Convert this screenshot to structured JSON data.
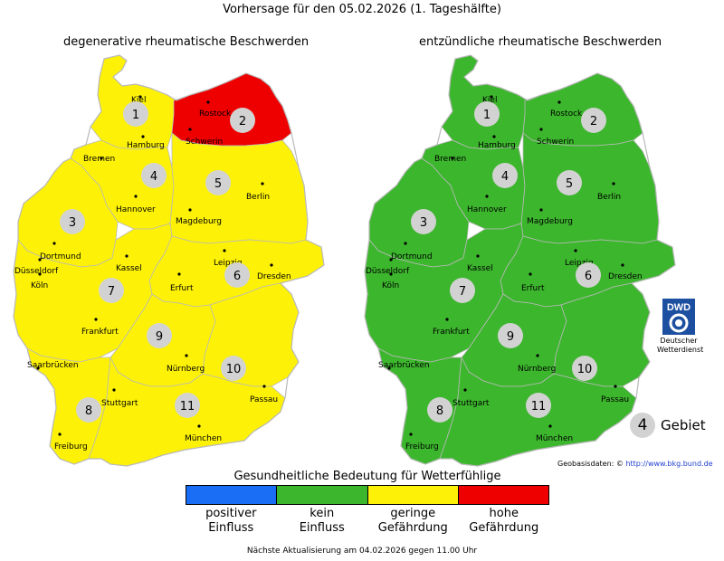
{
  "title": "Vorhersage für den 05.02.2026 (1. Tageshälfte)",
  "colors": {
    "positiver_einfluss": "#1a6ef5",
    "kein_einfluss": "#3cb62d",
    "geringe_gefaehrdung": "#fdf207",
    "hohe_gefaehrdung": "#ee0000",
    "region_circle": "#d2d2d2",
    "border": "#b9b9b9"
  },
  "maps": [
    {
      "title": "degenerative rheumatische Beschwerden",
      "region_levels": {
        "1": "geringe_gefaehrdung",
        "2": "hohe_gefaehrdung",
        "3": "geringe_gefaehrdung",
        "4": "geringe_gefaehrdung",
        "5": "geringe_gefaehrdung",
        "6": "geringe_gefaehrdung",
        "7": "geringe_gefaehrdung",
        "8": "geringe_gefaehrdung",
        "9": "geringe_gefaehrdung",
        "10": "geringe_gefaehrdung",
        "11": "geringe_gefaehrdung"
      }
    },
    {
      "title": "entzündliche rheumatische Beschwerden",
      "region_levels": {
        "1": "kein_einfluss",
        "2": "kein_einfluss",
        "3": "kein_einfluss",
        "4": "kein_einfluss",
        "5": "kein_einfluss",
        "6": "kein_einfluss",
        "7": "kein_einfluss",
        "8": "kein_einfluss",
        "9": "kein_einfluss",
        "10": "kein_einfluss",
        "11": "kein_einfluss"
      }
    }
  ],
  "regions": [
    "1",
    "2",
    "3",
    "4",
    "5",
    "6",
    "7",
    "8",
    "9",
    "10",
    "11"
  ],
  "cities": [
    "Kiel",
    "Rostock",
    "Hamburg",
    "Schwerin",
    "Bremen",
    "Hannover",
    "Berlin",
    "Magdeburg",
    "Dortmund",
    "Düsseldorf",
    "Köln",
    "Kassel",
    "Leipzig",
    "Dresden",
    "Erfurt",
    "Frankfurt",
    "Saarbrücken",
    "Nürnberg",
    "Passau",
    "Stuttgart",
    "München",
    "Freiburg"
  ],
  "logo": {
    "text": "DWD",
    "caption_1": "Deutscher",
    "caption_2": "Wetterdienst"
  },
  "gebiet": {
    "number": "4",
    "label": "Gebiet"
  },
  "geobasis": {
    "prefix": "Geobasisdaten: ©",
    "url": "http://www.bkg.bund.de"
  },
  "legend": {
    "title": "Gesundheitliche Bedeutung für Wetterfühlige",
    "items": [
      {
        "key": "positiver_einfluss",
        "line1": "positiver",
        "line2": "Einfluss"
      },
      {
        "key": "kein_einfluss",
        "line1": "kein",
        "line2": "Einfluss"
      },
      {
        "key": "geringe_gefaehrdung",
        "line1": "geringe",
        "line2": "Gefährdung"
      },
      {
        "key": "hohe_gefaehrdung",
        "line1": "hohe",
        "line2": "Gefährdung"
      }
    ]
  },
  "footer": "Nächste Aktualisierung am 04.02.2026 gegen 11.00 Uhr"
}
